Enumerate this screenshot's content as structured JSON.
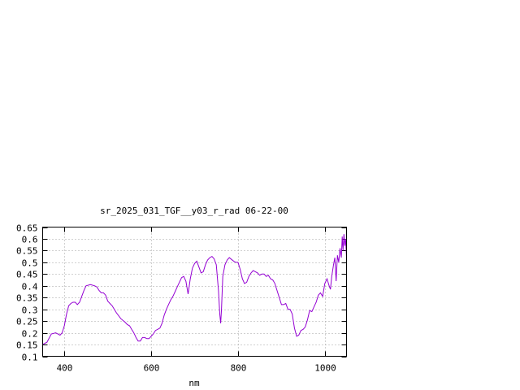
{
  "chart_data": {
    "type": "line",
    "title": "sr_2025_031_TGF__y03_r_rad 06-22-00",
    "xlabel": "nm",
    "ylabel": "",
    "xlim": [
      350,
      1050
    ],
    "ylim": [
      0.1,
      0.65
    ],
    "grid": true,
    "x_ticks": [
      400,
      600,
      800,
      1000
    ],
    "x_tick_labels": [
      "400",
      "600",
      "800",
      "1000"
    ],
    "y_ticks": [
      0.1,
      0.15,
      0.2,
      0.25,
      0.3,
      0.35,
      0.4,
      0.45,
      0.5,
      0.55,
      0.6,
      0.65
    ],
    "y_tick_labels": [
      "0.1",
      "0.15",
      "0.2",
      "0.25",
      "0.3",
      "0.35",
      "0.4",
      "0.45",
      "0.5",
      "0.55",
      "0.6",
      "0.65"
    ],
    "series": [
      {
        "color": "#9400d3",
        "x": [
          350,
          360,
          370,
          380,
          390,
          395,
          400,
          405,
          410,
          415,
          420,
          425,
          430,
          435,
          440,
          445,
          450,
          460,
          470,
          475,
          480,
          485,
          490,
          495,
          500,
          505,
          510,
          520,
          530,
          540,
          545,
          550,
          555,
          560,
          565,
          570,
          575,
          580,
          585,
          590,
          595,
          600,
          605,
          610,
          615,
          620,
          625,
          630,
          635,
          640,
          645,
          650,
          655,
          660,
          665,
          670,
          675,
          680,
          685,
          690,
          695,
          700,
          705,
          710,
          715,
          720,
          725,
          730,
          735,
          740,
          745,
          750,
          755,
          758,
          760,
          762,
          765,
          770,
          775,
          780,
          790,
          795,
          800,
          805,
          810,
          815,
          820,
          825,
          830,
          835,
          840,
          845,
          850,
          855,
          860,
          865,
          870,
          875,
          880,
          885,
          890,
          895,
          900,
          905,
          910,
          915,
          920,
          925,
          930,
          935,
          940,
          945,
          950,
          955,
          960,
          965,
          970,
          975,
          980,
          985,
          990,
          995,
          1000,
          1005,
          1010,
          1013,
          1016,
          1020,
          1023,
          1026,
          1029,
          1032,
          1035,
          1038,
          1040,
          1042,
          1044,
          1046,
          1048,
          1050
        ],
        "y": [
          0.15,
          0.16,
          0.195,
          0.2,
          0.19,
          0.2,
          0.23,
          0.28,
          0.315,
          0.325,
          0.33,
          0.33,
          0.32,
          0.33,
          0.355,
          0.38,
          0.4,
          0.405,
          0.4,
          0.395,
          0.38,
          0.37,
          0.37,
          0.36,
          0.335,
          0.325,
          0.315,
          0.285,
          0.26,
          0.245,
          0.235,
          0.23,
          0.215,
          0.2,
          0.18,
          0.165,
          0.165,
          0.18,
          0.18,
          0.175,
          0.175,
          0.185,
          0.195,
          0.21,
          0.215,
          0.22,
          0.24,
          0.275,
          0.3,
          0.32,
          0.34,
          0.355,
          0.375,
          0.395,
          0.415,
          0.435,
          0.44,
          0.42,
          0.365,
          0.43,
          0.475,
          0.495,
          0.505,
          0.48,
          0.455,
          0.46,
          0.49,
          0.51,
          0.52,
          0.525,
          0.515,
          0.49,
          0.38,
          0.28,
          0.24,
          0.3,
          0.44,
          0.49,
          0.51,
          0.52,
          0.505,
          0.5,
          0.5,
          0.47,
          0.43,
          0.41,
          0.415,
          0.44,
          0.455,
          0.465,
          0.46,
          0.455,
          0.445,
          0.45,
          0.45,
          0.44,
          0.445,
          0.43,
          0.425,
          0.41,
          0.38,
          0.35,
          0.32,
          0.32,
          0.325,
          0.3,
          0.3,
          0.28,
          0.22,
          0.185,
          0.19,
          0.21,
          0.215,
          0.225,
          0.255,
          0.295,
          0.29,
          0.31,
          0.33,
          0.36,
          0.37,
          0.355,
          0.41,
          0.43,
          0.4,
          0.385,
          0.44,
          0.49,
          0.52,
          0.42,
          0.53,
          0.5,
          0.56,
          0.52,
          0.61,
          0.55,
          0.62,
          0.57,
          0.6,
          0.52
        ]
      }
    ]
  }
}
